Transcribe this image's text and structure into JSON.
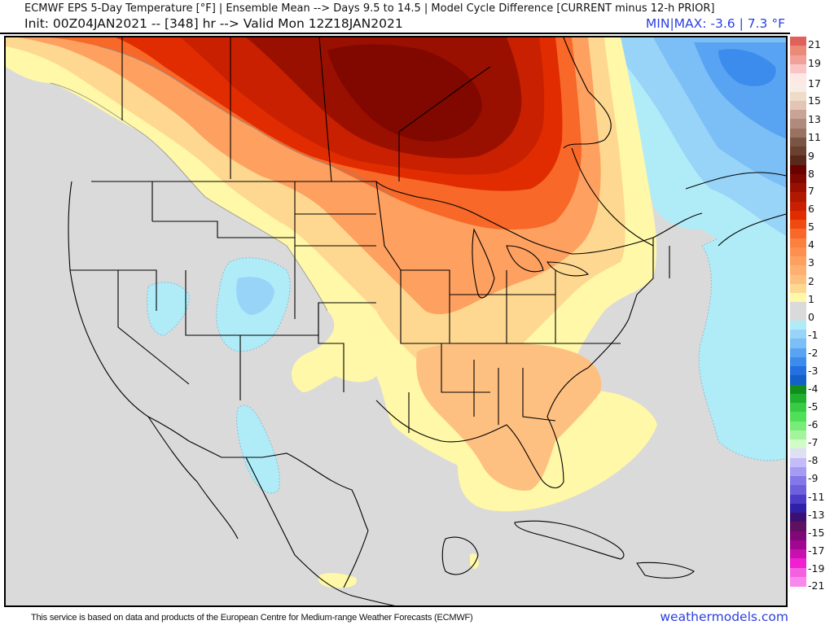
{
  "header": {
    "title_line1": "ECMWF EPS 5-Day Temperature [°F] | Ensemble Mean --> Days 9.5 to 14.5 | Model Cycle Difference [CURRENT minus 12-h PRIOR]",
    "title_line2": "Init: 00Z04JAN2021 -- [348] hr --> Valid Mon 12Z18JAN2021",
    "minmax": "MIN|MAX: -3.6 | 7.3 °F",
    "min_value": -3.6,
    "max_value": 7.3,
    "units": "°F"
  },
  "legend": {
    "tick_labels": [
      "21",
      "19",
      "17",
      "15",
      "13",
      "11",
      "9",
      "8",
      "7",
      "6",
      "5",
      "4",
      "3",
      "2",
      "1",
      "0",
      "-1",
      "-2",
      "-3",
      "-4",
      "-5",
      "-6",
      "-7",
      "-8",
      "-9",
      "-11",
      "-13",
      "-15",
      "-17",
      "-19",
      "-21"
    ],
    "bins": [
      {
        "color": "#e0605c"
      },
      {
        "color": "#ec8a78"
      },
      {
        "color": "#f2a09a"
      },
      {
        "color": "#f9c4c4"
      },
      {
        "color": "#fde8e6"
      },
      {
        "color": "#f8ece4"
      },
      {
        "color": "#ecdcc8"
      },
      {
        "color": "#e4c4b4"
      },
      {
        "color": "#c8a496"
      },
      {
        "color": "#b08a7c"
      },
      {
        "color": "#9a7262"
      },
      {
        "color": "#7a5444"
      },
      {
        "color": "#6a4030"
      },
      {
        "color": "#5a2818"
      },
      {
        "color": "#6a0000"
      },
      {
        "color": "#800800"
      },
      {
        "color": "#9a1000"
      },
      {
        "color": "#b01800"
      },
      {
        "color": "#c82000"
      },
      {
        "color": "#e02c00"
      },
      {
        "color": "#f04a10"
      },
      {
        "color": "#f86828"
      },
      {
        "color": "#fc8040"
      },
      {
        "color": "#fd9050"
      },
      {
        "color": "#fea060"
      },
      {
        "color": "#feb070"
      },
      {
        "color": "#fec080"
      },
      {
        "color": "#fed890"
      },
      {
        "color": "#fff8a8"
      },
      {
        "color": "#dadada"
      },
      {
        "color": "#dadada"
      },
      {
        "color": "#b0ecf8"
      },
      {
        "color": "#98d4f8"
      },
      {
        "color": "#7cbef6"
      },
      {
        "color": "#58a4f2"
      },
      {
        "color": "#3c8cee"
      },
      {
        "color": "#2470e0"
      },
      {
        "color": "#1460c8"
      },
      {
        "color": "#10901a"
      },
      {
        "color": "#20b030"
      },
      {
        "color": "#38cc44"
      },
      {
        "color": "#50e058"
      },
      {
        "color": "#78ec78"
      },
      {
        "color": "#a4f49c"
      },
      {
        "color": "#d0fcc8"
      },
      {
        "color": "#e0e0f4"
      },
      {
        "color": "#c4bcf8"
      },
      {
        "color": "#a49cf4"
      },
      {
        "color": "#8478e8"
      },
      {
        "color": "#6c60dc"
      },
      {
        "color": "#4c3cc8"
      },
      {
        "color": "#3020a8"
      },
      {
        "color": "#3c1070"
      },
      {
        "color": "#601060"
      },
      {
        "color": "#800878"
      },
      {
        "color": "#a00890"
      },
      {
        "color": "#c810b0"
      },
      {
        "color": "#f020d0"
      },
      {
        "color": "#f460e0"
      },
      {
        "color": "#f888ec"
      }
    ]
  },
  "map": {
    "region": "North America (CONUS, southern Canada, Mexico, Caribbean)",
    "features": [
      {
        "name": "warm-anomaly-core",
        "location": "Manitoba / Saskatchewan / NW Ontario",
        "approx_value": "7 to 8"
      },
      {
        "name": "cold-anomaly-core",
        "location": "Labrador / Quebec",
        "approx_value": "-3 to -4"
      },
      {
        "name": "warm-anomaly-southeast",
        "location": "Southeast US / Florida",
        "approx_value": "1 to 2"
      },
      {
        "name": "cool-anomaly-rockies",
        "location": "Colorado / Utah / Wyoming",
        "approx_value": "-1 to -2"
      },
      {
        "name": "cool-anomaly-atlantic",
        "location": "Northwest Atlantic",
        "approx_value": "-1"
      }
    ],
    "colors": {
      "neutral": "#dadada",
      "ocean_bg": "#dadada",
      "border": "#000000",
      "contour": "#8c8c8c"
    }
  },
  "footer": {
    "attribution": "This service is based on data and products of the European Centre for Medium-range Weather Forecasts (ECMWF)",
    "brand": "weathermodels.com"
  }
}
